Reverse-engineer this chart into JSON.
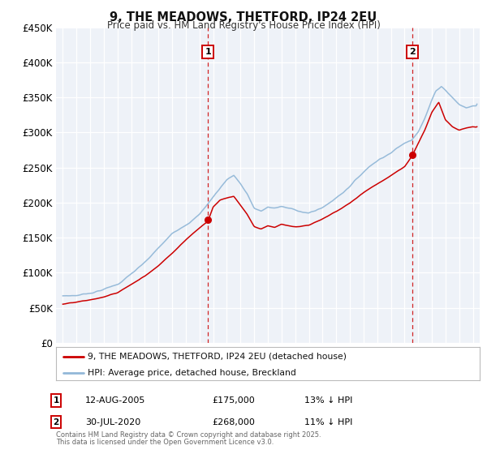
{
  "title": "9, THE MEADOWS, THETFORD, IP24 2EU",
  "subtitle": "Price paid vs. HM Land Registry's House Price Index (HPI)",
  "line1_label": "9, THE MEADOWS, THETFORD, IP24 2EU (detached house)",
  "line2_label": "HPI: Average price, detached house, Breckland",
  "line1_color": "#cc0000",
  "line2_color": "#92b8d8",
  "vline_color": "#cc0000",
  "annotation1": {
    "label": "1",
    "date_str": "12-AUG-2005",
    "price": "£175,000",
    "hpi_pct": "13% ↓ HPI",
    "year": 2005.62
  },
  "annotation2": {
    "label": "2",
    "date_str": "30-JUL-2020",
    "price": "£268,000",
    "hpi_pct": "11% ↓ HPI",
    "year": 2020.58
  },
  "footer1": "Contains HM Land Registry data © Crown copyright and database right 2025.",
  "footer2": "This data is licensed under the Open Government Licence v3.0.",
  "ylim": [
    0,
    450000
  ],
  "xlim": [
    1994.5,
    2025.5
  ],
  "yticks": [
    0,
    50000,
    100000,
    150000,
    200000,
    250000,
    300000,
    350000,
    400000,
    450000
  ],
  "background_color": "#ffffff",
  "plot_bg_color": "#eef2f8",
  "grid_color": "#ffffff",
  "hpi_knots_x": [
    1995,
    1996,
    1997,
    1998,
    1999,
    2000,
    2001,
    2002,
    2003,
    2004,
    2005,
    2006,
    2007,
    2007.5,
    2008,
    2008.5,
    2009,
    2009.5,
    2010,
    2010.5,
    2011,
    2011.5,
    2012,
    2012.5,
    2013,
    2013.5,
    2014,
    2014.5,
    2015,
    2015.5,
    2016,
    2016.5,
    2017,
    2017.5,
    2018,
    2018.5,
    2019,
    2019.5,
    2020,
    2020.5,
    2021,
    2021.5,
    2022,
    2022.3,
    2022.7,
    2023,
    2023.5,
    2024,
    2024.5,
    2025
  ],
  "hpi_knots_y": [
    67000,
    68000,
    72000,
    78000,
    85000,
    100000,
    115000,
    135000,
    155000,
    170000,
    185000,
    210000,
    235000,
    242000,
    230000,
    215000,
    195000,
    190000,
    196000,
    195000,
    197000,
    194000,
    192000,
    190000,
    188000,
    191000,
    196000,
    202000,
    210000,
    218000,
    228000,
    238000,
    248000,
    258000,
    265000,
    272000,
    278000,
    285000,
    291000,
    296000,
    310000,
    330000,
    355000,
    368000,
    375000,
    370000,
    360000,
    350000,
    345000,
    348000
  ],
  "prop_knots_x": [
    1995,
    1996,
    1997,
    1998,
    1999,
    2000,
    2001,
    2002,
    2003,
    2004,
    2005,
    2005.62,
    2006,
    2006.5,
    2007,
    2007.5,
    2008,
    2008.5,
    2009,
    2009.5,
    2010,
    2010.5,
    2011,
    2011.5,
    2012,
    2013,
    2014,
    2015,
    2016,
    2017,
    2018,
    2019,
    2020,
    2020.58,
    2021,
    2021.5,
    2022,
    2022.5,
    2023,
    2023.5,
    2024,
    2024.5,
    2025
  ],
  "prop_knots_y": [
    55000,
    57000,
    60000,
    64000,
    70000,
    82000,
    94000,
    110000,
    128000,
    148000,
    165000,
    175000,
    195000,
    205000,
    208000,
    210000,
    198000,
    185000,
    168000,
    165000,
    170000,
    168000,
    172000,
    170000,
    168000,
    170000,
    178000,
    188000,
    200000,
    215000,
    228000,
    240000,
    252000,
    268000,
    285000,
    305000,
    330000,
    345000,
    320000,
    310000,
    305000,
    308000,
    310000
  ]
}
